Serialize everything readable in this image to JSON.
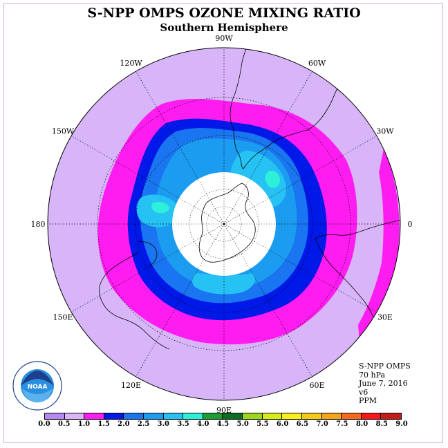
{
  "header": {
    "title": "S-NPP OMPS OZONE MIXING RATIO",
    "subtitle": "Southern Hemisphere"
  },
  "map": {
    "projection": "south-polar-stereographic",
    "longitude_labels": [
      "90W",
      "60W",
      "30W",
      "0",
      "30E",
      "60E",
      "90E",
      "120E",
      "150E",
      "180",
      "150W",
      "120W"
    ],
    "no_data_center": "polar night (no data)",
    "colors": {
      "ocean_background": "#d8b4f8",
      "level_1_0": "#ff1cf0",
      "level_1_5": "#0018e8",
      "level_2_0": "#1a76f0",
      "level_2_5": "#1c9cf0",
      "level_3_0": "#27c2f4",
      "level_3_5": "#2ef0d8",
      "coastline": "#000000",
      "graticule": "#000000"
    }
  },
  "info": {
    "instrument": "S-NPP OMPS",
    "level": "70 hPa",
    "date": "June 7, 2016",
    "version": "v6",
    "units": "PPM"
  },
  "logo": {
    "text": "NOAA",
    "agency_ring": "NATIONAL OCEANIC AND ATMOSPHERIC ADMINISTRATION · U.S. DEPARTMENT OF COMMERCE",
    "icon": "noaa-logo-icon"
  },
  "colorbar": {
    "ticks": [
      "0.0",
      "0.5",
      "1.0",
      "1.5",
      "2.0",
      "2.5",
      "3.0",
      "3.5",
      "4.0",
      "4.5",
      "5.0",
      "5.5",
      "6.0",
      "6.5",
      "7.0",
      "7.5",
      "8.0",
      "8.5",
      "9.0"
    ],
    "colors": [
      "#b28af0",
      "#dab4f8",
      "#ff1cf0",
      "#0018e8",
      "#1a76f0",
      "#1c9cf0",
      "#27c2f4",
      "#2ef0d8",
      "#1a9e36",
      "#0c6e22",
      "#9ad81e",
      "#d8ec1a",
      "#f8f018",
      "#f8c81a",
      "#f8a41a",
      "#f86a1a",
      "#f81818",
      "#c41c18",
      "#8a5a3a"
    ]
  }
}
